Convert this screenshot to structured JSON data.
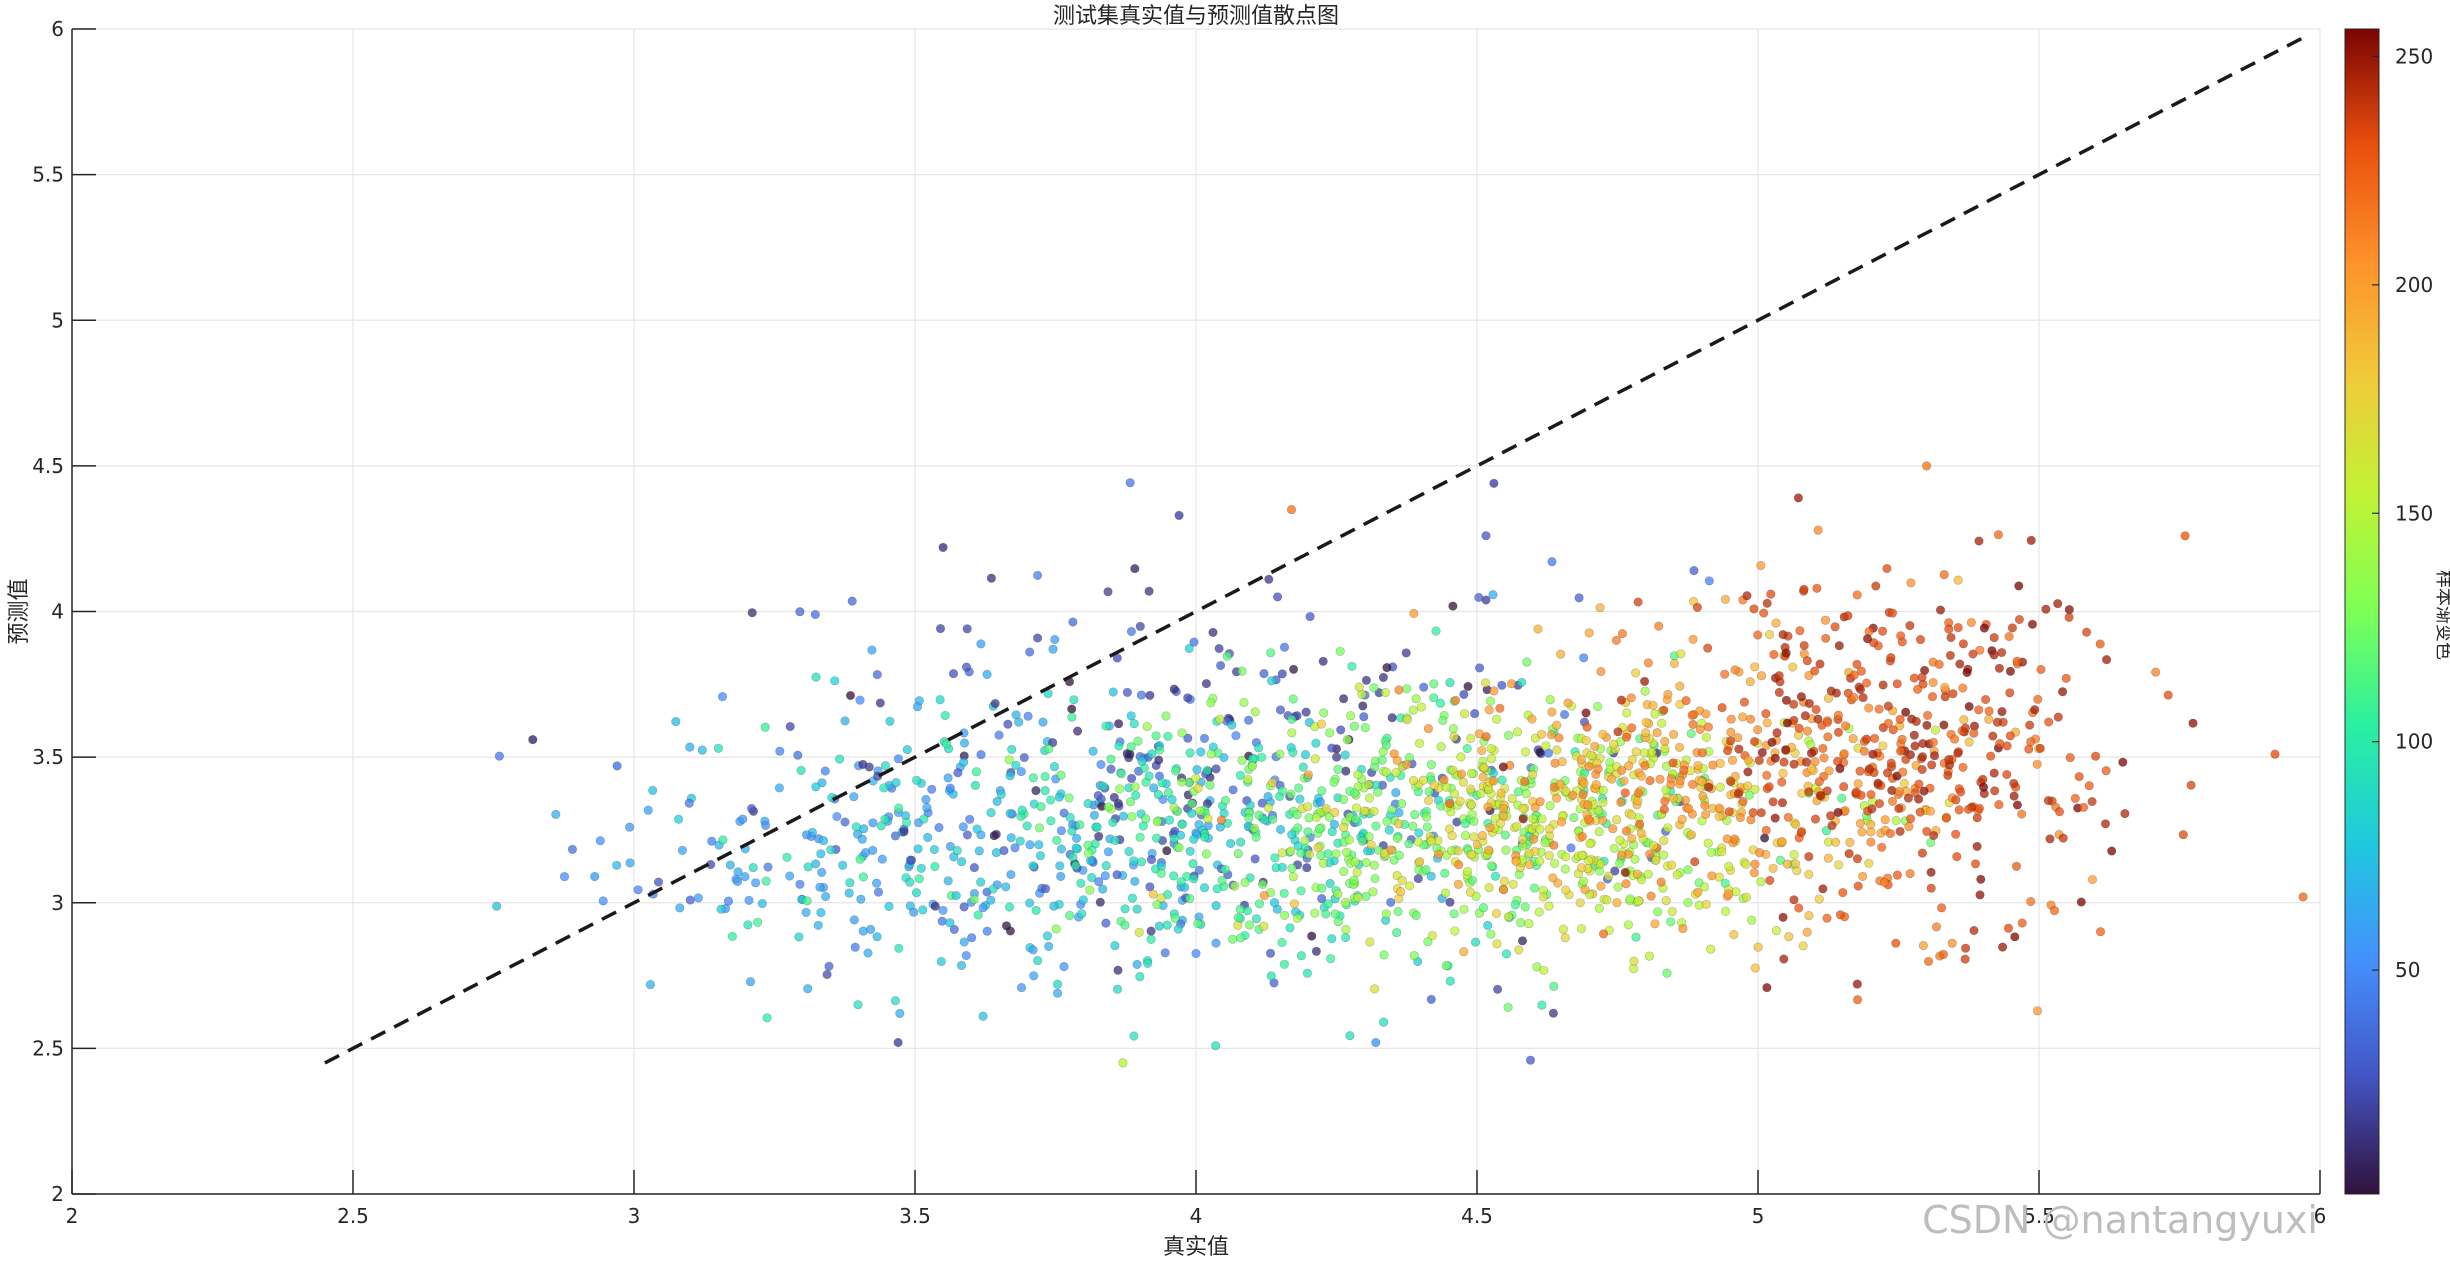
{
  "chart_data": {
    "type": "scatter",
    "title": "测试集真实值与预测值散点图",
    "xlabel": "真实值",
    "ylabel": "预测值",
    "xlim": [
      2,
      6
    ],
    "ylim": [
      2,
      6
    ],
    "x_ticks": [
      "2",
      "2.5",
      "3",
      "3.5",
      "4",
      "4.5",
      "5",
      "5.5",
      "6"
    ],
    "y_ticks": [
      "2",
      "2.5",
      "3",
      "3.5",
      "4",
      "4.5",
      "5",
      "5.5",
      "6"
    ],
    "grid": true,
    "reference_line": {
      "style": "dashed",
      "color": "#1a1a1a",
      "x": [
        2.45,
        5.97
      ],
      "y": [
        2.45,
        5.97
      ]
    },
    "colorbar": {
      "label": "样本渐变色",
      "range": [
        1,
        256
      ],
      "ticks": [
        "50",
        "100",
        "150",
        "200",
        "250"
      ],
      "colormap": "turbo"
    },
    "point_clusters": [
      {
        "color_value": 60,
        "x_mean": 3.55,
        "x_sd": 0.32,
        "y_mean": 3.22,
        "y_sd": 0.28,
        "count": 260
      },
      {
        "color_value": 25,
        "x_mean": 4.05,
        "x_sd": 0.4,
        "y_mean": 3.45,
        "y_sd": 0.33,
        "count": 260
      },
      {
        "color_value": 95,
        "x_mean": 3.95,
        "x_sd": 0.35,
        "y_mean": 3.2,
        "y_sd": 0.25,
        "count": 330
      },
      {
        "color_value": 125,
        "x_mean": 4.4,
        "x_sd": 0.3,
        "y_mean": 3.3,
        "y_sd": 0.22,
        "count": 380
      },
      {
        "color_value": 160,
        "x_mean": 4.65,
        "x_sd": 0.28,
        "y_mean": 3.28,
        "y_sd": 0.22,
        "count": 380
      },
      {
        "color_value": 200,
        "x_mean": 4.9,
        "x_sd": 0.25,
        "y_mean": 3.4,
        "y_sd": 0.25,
        "count": 330
      },
      {
        "color_value": 235,
        "x_mean": 5.25,
        "x_sd": 0.2,
        "y_mean": 3.55,
        "y_sd": 0.28,
        "count": 420
      }
    ],
    "outlier_points": [
      {
        "x": 2.82,
        "y": 3.56,
        "c": 10
      },
      {
        "x": 2.93,
        "y": 3.09,
        "c": 60
      },
      {
        "x": 2.97,
        "y": 3.47,
        "c": 40
      },
      {
        "x": 3.47,
        "y": 2.52,
        "c": 20
      },
      {
        "x": 3.55,
        "y": 4.22,
        "c": 15
      },
      {
        "x": 3.87,
        "y": 2.45,
        "c": 150
      },
      {
        "x": 3.97,
        "y": 4.33,
        "c": 20
      },
      {
        "x": 4.17,
        "y": 4.35,
        "c": 215
      },
      {
        "x": 4.32,
        "y": 2.52,
        "c": 55
      },
      {
        "x": 4.53,
        "y": 4.44,
        "c": 20
      },
      {
        "x": 5.3,
        "y": 4.5,
        "c": 215
      },
      {
        "x": 5.97,
        "y": 3.02,
        "c": 220
      },
      {
        "x": 5.76,
        "y": 4.26,
        "c": 225
      },
      {
        "x": 5.92,
        "y": 3.51,
        "c": 230
      }
    ]
  },
  "watermark": "CSDN @nantangyuxi"
}
